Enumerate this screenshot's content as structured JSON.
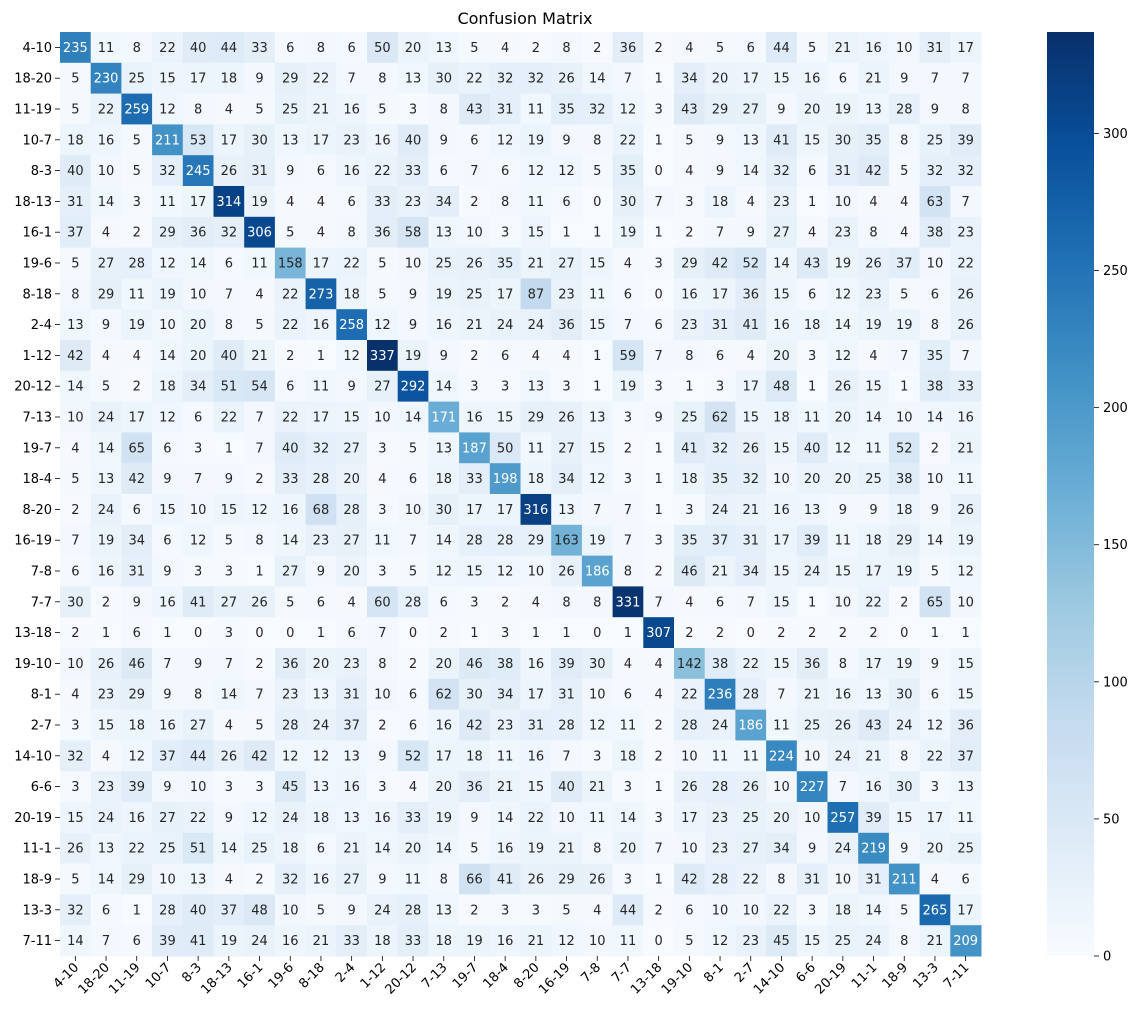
{
  "chart_data": {
    "type": "heatmap",
    "title": "Confusion Matrix",
    "xlabel": "",
    "ylabel": "",
    "labels": [
      "4-10",
      "18-20",
      "11-19",
      "10-7",
      "8-3",
      "18-13",
      "16-1",
      "19-6",
      "8-18",
      "2-4",
      "1-12",
      "20-12",
      "7-13",
      "19-7",
      "18-4",
      "8-20",
      "16-19",
      "7-8",
      "7-7",
      "13-18",
      "19-10",
      "8-1",
      "2-7",
      "14-10",
      "6-6",
      "20-19",
      "11-1",
      "18-9",
      "13-3",
      "7-11"
    ],
    "matrix": [
      [
        235,
        11,
        8,
        22,
        40,
        44,
        33,
        6,
        8,
        6,
        50,
        20,
        13,
        5,
        4,
        2,
        8,
        2,
        36,
        2,
        4,
        5,
        6,
        44,
        5,
        21,
        16,
        10,
        31,
        17
      ],
      [
        5,
        230,
        25,
        15,
        17,
        18,
        9,
        29,
        22,
        7,
        8,
        13,
        30,
        22,
        32,
        32,
        26,
        14,
        7,
        1,
        34,
        20,
        17,
        15,
        16,
        6,
        21,
        9,
        7,
        7
      ],
      [
        5,
        22,
        259,
        12,
        8,
        4,
        5,
        25,
        21,
        16,
        5,
        3,
        8,
        43,
        31,
        11,
        35,
        32,
        12,
        3,
        43,
        29,
        27,
        9,
        20,
        19,
        13,
        28,
        9,
        8
      ],
      [
        18,
        16,
        5,
        211,
        53,
        17,
        30,
        13,
        17,
        23,
        16,
        40,
        9,
        6,
        12,
        19,
        9,
        8,
        22,
        1,
        5,
        9,
        13,
        41,
        15,
        30,
        35,
        8,
        25,
        39
      ],
      [
        40,
        10,
        5,
        32,
        245,
        26,
        31,
        9,
        6,
        16,
        22,
        33,
        6,
        7,
        6,
        12,
        12,
        5,
        35,
        0,
        4,
        9,
        14,
        32,
        6,
        31,
        42,
        5,
        32,
        32
      ],
      [
        31,
        14,
        3,
        11,
        17,
        314,
        19,
        4,
        4,
        6,
        33,
        23,
        34,
        2,
        8,
        11,
        6,
        0,
        30,
        7,
        3,
        18,
        4,
        23,
        1,
        10,
        4,
        4,
        63,
        7
      ],
      [
        37,
        4,
        2,
        29,
        36,
        32,
        306,
        5,
        4,
        8,
        36,
        58,
        13,
        10,
        3,
        15,
        1,
        1,
        19,
        1,
        2,
        7,
        9,
        27,
        4,
        23,
        8,
        4,
        38,
        23
      ],
      [
        5,
        27,
        28,
        12,
        14,
        6,
        11,
        158,
        17,
        22,
        5,
        10,
        25,
        26,
        35,
        21,
        27,
        15,
        4,
        3,
        29,
        42,
        52,
        14,
        43,
        19,
        26,
        37,
        10,
        22
      ],
      [
        8,
        29,
        11,
        19,
        10,
        7,
        4,
        22,
        273,
        18,
        5,
        9,
        19,
        25,
        17,
        87,
        23,
        11,
        6,
        0,
        16,
        17,
        36,
        15,
        6,
        12,
        23,
        5,
        6,
        26
      ],
      [
        13,
        9,
        19,
        10,
        20,
        8,
        5,
        22,
        16,
        258,
        12,
        9,
        16,
        21,
        24,
        24,
        36,
        15,
        7,
        6,
        23,
        31,
        41,
        16,
        18,
        14,
        19,
        19,
        8,
        26
      ],
      [
        42,
        4,
        4,
        14,
        20,
        40,
        21,
        2,
        1,
        12,
        337,
        19,
        9,
        2,
        6,
        4,
        4,
        1,
        59,
        7,
        8,
        6,
        4,
        20,
        3,
        12,
        4,
        7,
        35,
        7
      ],
      [
        14,
        5,
        2,
        18,
        34,
        51,
        54,
        6,
        11,
        9,
        27,
        292,
        14,
        3,
        3,
        13,
        3,
        1,
        19,
        3,
        1,
        3,
        17,
        48,
        1,
        26,
        15,
        1,
        38,
        33
      ],
      [
        10,
        24,
        17,
        12,
        6,
        22,
        7,
        22,
        17,
        15,
        10,
        14,
        171,
        16,
        15,
        29,
        26,
        13,
        3,
        9,
        25,
        62,
        15,
        18,
        11,
        20,
        14,
        10,
        14,
        16
      ],
      [
        4,
        14,
        65,
        6,
        3,
        1,
        7,
        40,
        32,
        27,
        3,
        5,
        13,
        187,
        50,
        11,
        27,
        15,
        2,
        1,
        41,
        32,
        26,
        15,
        40,
        12,
        11,
        52,
        2,
        21
      ],
      [
        5,
        13,
        42,
        9,
        7,
        9,
        2,
        33,
        28,
        20,
        4,
        6,
        18,
        33,
        198,
        18,
        34,
        12,
        3,
        1,
        18,
        35,
        32,
        10,
        20,
        20,
        25,
        38,
        10,
        11
      ],
      [
        2,
        24,
        6,
        15,
        10,
        15,
        12,
        16,
        68,
        28,
        3,
        10,
        30,
        17,
        17,
        316,
        13,
        7,
        7,
        1,
        3,
        24,
        21,
        16,
        13,
        9,
        9,
        18,
        9,
        26
      ],
      [
        7,
        19,
        34,
        6,
        12,
        5,
        8,
        14,
        23,
        27,
        11,
        7,
        14,
        28,
        28,
        29,
        163,
        19,
        7,
        3,
        35,
        37,
        31,
        17,
        39,
        11,
        18,
        29,
        14,
        19
      ],
      [
        6,
        16,
        31,
        9,
        3,
        3,
        1,
        27,
        9,
        20,
        3,
        5,
        12,
        15,
        12,
        10,
        26,
        186,
        8,
        2,
        46,
        21,
        34,
        15,
        24,
        15,
        17,
        19,
        5,
        12
      ],
      [
        30,
        2,
        9,
        16,
        41,
        27,
        26,
        5,
        6,
        4,
        60,
        28,
        6,
        3,
        2,
        4,
        8,
        8,
        331,
        7,
        4,
        6,
        7,
        15,
        1,
        10,
        22,
        2,
        65,
        10
      ],
      [
        2,
        1,
        6,
        1,
        0,
        3,
        0,
        0,
        1,
        6,
        7,
        0,
        2,
        1,
        3,
        1,
        1,
        0,
        1,
        307,
        2,
        2,
        0,
        2,
        2,
        2,
        2,
        0,
        1,
        1
      ],
      [
        10,
        26,
        46,
        7,
        9,
        7,
        2,
        36,
        20,
        23,
        8,
        2,
        20,
        46,
        38,
        16,
        39,
        30,
        4,
        4,
        142,
        38,
        22,
        15,
        36,
        8,
        17,
        19,
        9,
        15
      ],
      [
        4,
        23,
        29,
        9,
        8,
        14,
        7,
        23,
        13,
        31,
        10,
        6,
        62,
        30,
        34,
        17,
        31,
        10,
        6,
        4,
        22,
        236,
        28,
        7,
        21,
        16,
        13,
        30,
        6,
        15
      ],
      [
        3,
        15,
        18,
        16,
        27,
        4,
        5,
        28,
        24,
        37,
        2,
        6,
        16,
        42,
        23,
        31,
        28,
        12,
        11,
        2,
        28,
        24,
        186,
        11,
        25,
        26,
        43,
        24,
        12,
        36
      ],
      [
        32,
        4,
        12,
        37,
        44,
        26,
        42,
        12,
        12,
        13,
        9,
        52,
        17,
        18,
        11,
        16,
        7,
        3,
        18,
        2,
        10,
        11,
        11,
        224,
        10,
        24,
        21,
        8,
        22,
        37
      ],
      [
        3,
        23,
        39,
        9,
        10,
        3,
        3,
        45,
        13,
        16,
        3,
        4,
        20,
        36,
        21,
        15,
        40,
        21,
        3,
        1,
        26,
        28,
        26,
        10,
        227,
        7,
        16,
        30,
        3,
        13
      ],
      [
        15,
        24,
        16,
        27,
        22,
        9,
        12,
        24,
        18,
        13,
        16,
        33,
        19,
        9,
        14,
        22,
        10,
        11,
        14,
        3,
        17,
        23,
        25,
        20,
        10,
        257,
        39,
        15,
        17,
        11
      ],
      [
        26,
        13,
        22,
        25,
        51,
        14,
        25,
        18,
        6,
        21,
        14,
        20,
        14,
        5,
        16,
        19,
        21,
        8,
        20,
        7,
        10,
        23,
        27,
        34,
        9,
        24,
        219,
        9,
        20,
        25
      ],
      [
        5,
        14,
        29,
        10,
        13,
        4,
        2,
        32,
        16,
        27,
        9,
        11,
        8,
        66,
        41,
        26,
        29,
        26,
        3,
        1,
        42,
        28,
        22,
        8,
        31,
        10,
        31,
        211,
        4,
        6
      ],
      [
        32,
        6,
        1,
        28,
        40,
        37,
        48,
        10,
        5,
        9,
        24,
        28,
        13,
        2,
        3,
        3,
        5,
        4,
        44,
        2,
        6,
        10,
        10,
        22,
        3,
        18,
        14,
        5,
        265,
        17
      ],
      [
        14,
        7,
        6,
        39,
        41,
        19,
        24,
        16,
        21,
        33,
        18,
        33,
        18,
        19,
        16,
        21,
        12,
        10,
        11,
        0,
        5,
        12,
        23,
        45,
        15,
        25,
        24,
        8,
        21,
        209
      ]
    ],
    "vmin": 0,
    "vmax": 337,
    "colorbar_ticks": [
      0,
      50,
      100,
      150,
      200,
      250,
      300
    ],
    "colormap": "Blues",
    "colormap_stops": [
      "#f7fbff",
      "#deebf7",
      "#c6dbef",
      "#9ecae1",
      "#6baed6",
      "#4292c6",
      "#2171b5",
      "#08519c",
      "#08306b"
    ]
  }
}
